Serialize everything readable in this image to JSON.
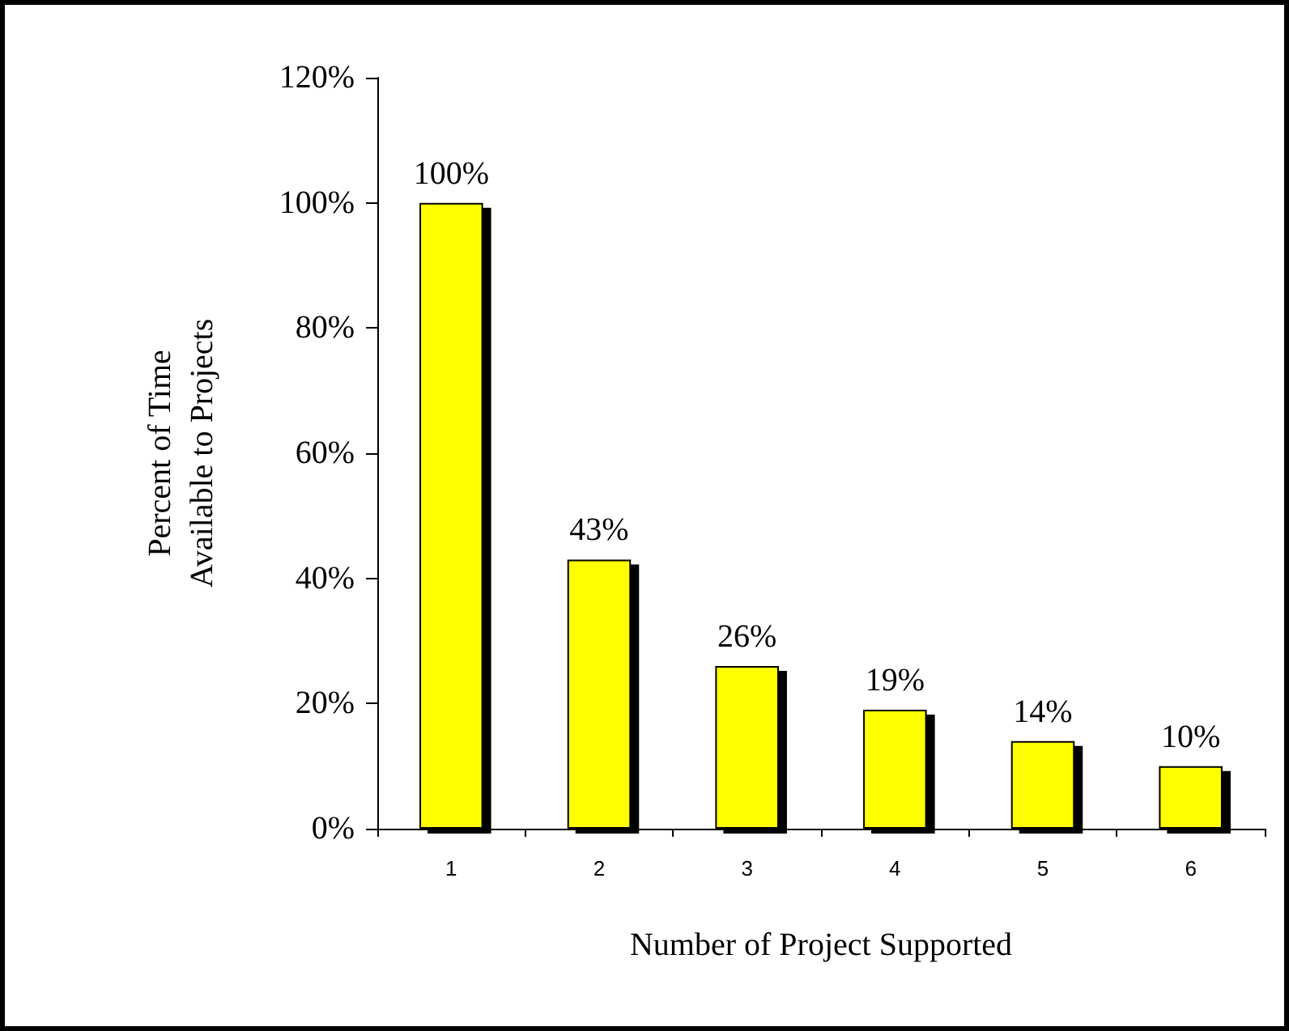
{
  "chart_data": {
    "type": "bar",
    "xlabel": "Number of Project Supported",
    "ylabel": "Percent of Time\nAvailable to Projects",
    "categories": [
      "1",
      "2",
      "3",
      "4",
      "5",
      "6"
    ],
    "values": [
      100,
      43,
      26,
      19,
      14,
      10
    ],
    "value_labels": [
      "100%",
      "43%",
      "26%",
      "19%",
      "14%",
      "10%"
    ],
    "color": "#ffff00",
    "ylim": [
      0,
      120
    ],
    "yticks": [
      {
        "value": 0,
        "label": "0%"
      },
      {
        "value": 20,
        "label": "20%"
      },
      {
        "value": 40,
        "label": "40%"
      },
      {
        "value": 60,
        "label": "60%"
      },
      {
        "value": 80,
        "label": "80%"
      },
      {
        "value": 100,
        "label": "100%"
      },
      {
        "value": 120,
        "label": "120%"
      }
    ],
    "grid": false
  }
}
